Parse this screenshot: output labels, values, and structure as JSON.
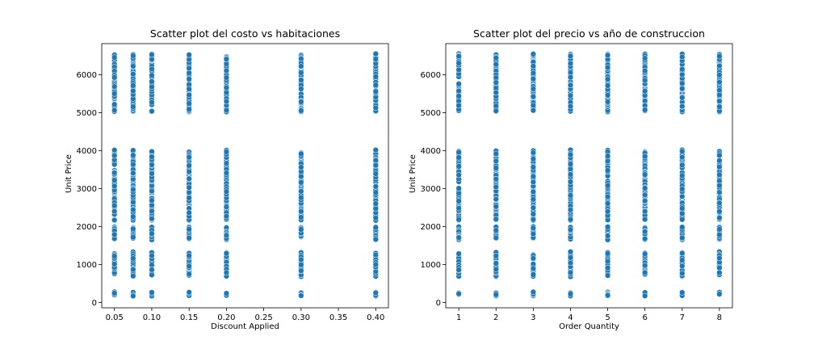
{
  "chart_data": [
    {
      "type": "scatter",
      "title": "Scatter plot del costo vs habitaciones",
      "xlabel": "Discount Applied",
      "ylabel": "Unit Price",
      "xlim": [
        0.033,
        0.417
      ],
      "ylim": [
        -140,
        6820
      ],
      "xticks": [
        0.05,
        0.1,
        0.15,
        0.2,
        0.25,
        0.3,
        0.35,
        0.4
      ],
      "xtick_labels": [
        "0.05",
        "0.10",
        "0.15",
        "0.20",
        "0.25",
        "0.30",
        "0.35",
        "0.40"
      ],
      "yticks": [
        0,
        1000,
        2000,
        3000,
        4000,
        5000,
        6000
      ],
      "ytick_labels": [
        "0",
        "1000",
        "2000",
        "3000",
        "4000",
        "5000",
        "6000"
      ],
      "grid": false,
      "color": "#1f77b4",
      "series": [
        {
          "x_values": [
            0.05,
            0.075,
            0.1,
            0.15,
            0.2,
            0.3,
            0.4
          ],
          "y_ranges": [
            [
              167,
              280
            ],
            [
              680,
              1340
            ],
            [
              1650,
              2000
            ],
            [
              2160,
              4020
            ],
            [
              5020,
              6560
            ]
          ]
        }
      ]
    },
    {
      "type": "scatter",
      "title": "Scatter plot del precio vs año de construccion",
      "xlabel": "Order Quantity",
      "ylabel": "Unit Price",
      "xlim": [
        0.65,
        8.35
      ],
      "ylim": [
        -140,
        6820
      ],
      "xticks": [
        1,
        2,
        3,
        4,
        5,
        6,
        7,
        8
      ],
      "xtick_labels": [
        "1",
        "2",
        "3",
        "4",
        "5",
        "6",
        "7",
        "8"
      ],
      "yticks": [
        0,
        1000,
        2000,
        3000,
        4000,
        5000,
        6000
      ],
      "ytick_labels": [
        "0",
        "1000",
        "2000",
        "3000",
        "4000",
        "5000",
        "6000"
      ],
      "grid": false,
      "color": "#1f77b4",
      "series": [
        {
          "x_values": [
            1,
            2,
            3,
            4,
            5,
            6,
            7,
            8
          ],
          "y_ranges": [
            [
              167,
              280
            ],
            [
              680,
              1340
            ],
            [
              1650,
              2000
            ],
            [
              2160,
              4020
            ],
            [
              5020,
              6560
            ]
          ]
        }
      ]
    }
  ]
}
